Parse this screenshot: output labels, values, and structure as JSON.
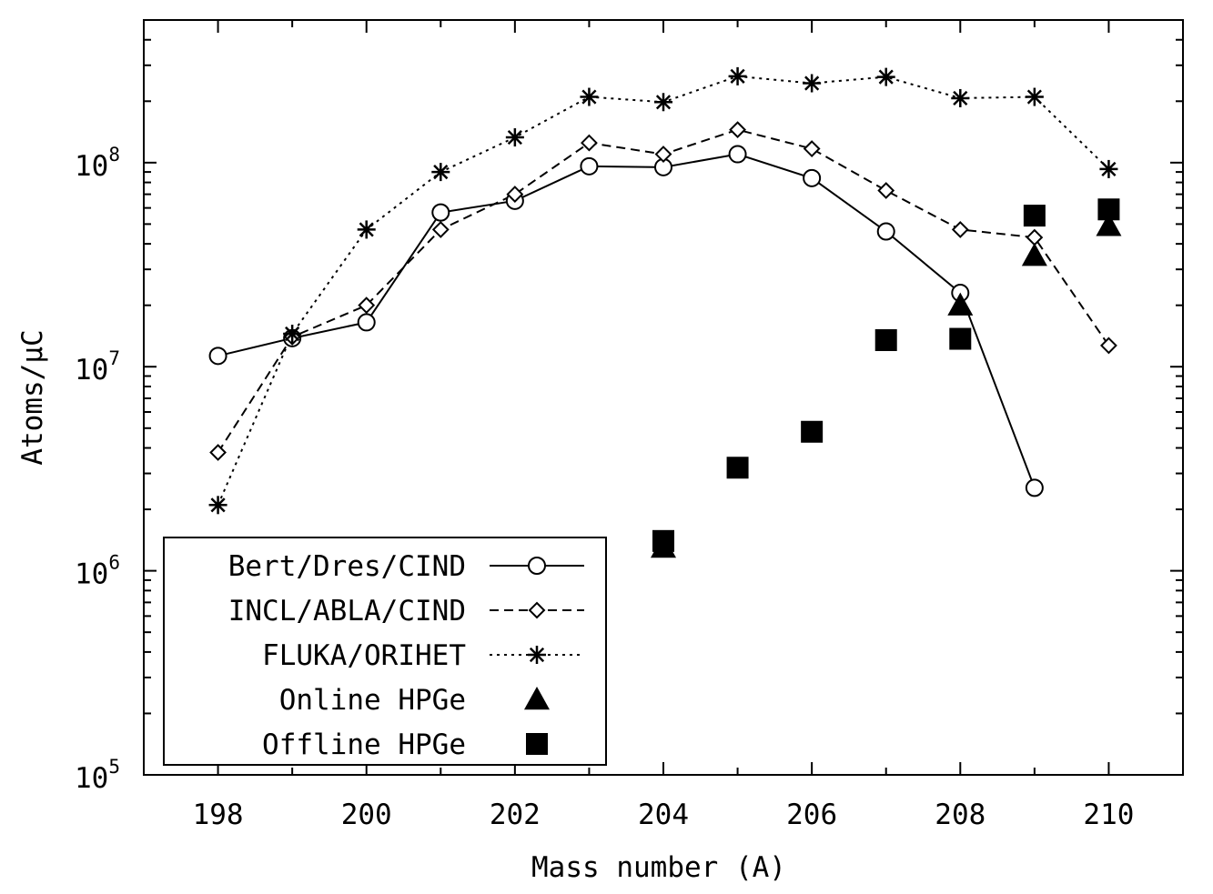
{
  "chart_data": {
    "type": "scatter",
    "title": "",
    "xlabel": "Mass number (A)",
    "ylabel": "Atoms/μC",
    "xlim": [
      197,
      211
    ],
    "ylim": [
      100000,
      500000000
    ],
    "yscale": "log",
    "grid": false,
    "legend_position": "bottom-left",
    "x_ticks": [
      198,
      200,
      202,
      204,
      206,
      208,
      210
    ],
    "y_ticks": [
      {
        "value": 100000,
        "base": "10",
        "exp": "5"
      },
      {
        "value": 1000000,
        "base": "10",
        "exp": "6"
      },
      {
        "value": 10000000,
        "base": "10",
        "exp": "7"
      },
      {
        "value": 100000000,
        "base": "10",
        "exp": "8"
      }
    ],
    "series": [
      {
        "name": "Bert/Dres/CIND",
        "style": "solid",
        "marker": "circle-open",
        "x": [
          198,
          199,
          200,
          201,
          202,
          203,
          204,
          205,
          206,
          207,
          208,
          209
        ],
        "y": [
          11300000,
          13800000,
          16500000,
          57000000,
          65000000,
          96000000,
          95000000,
          110000000,
          84000000,
          46000000,
          23000000,
          2550000
        ]
      },
      {
        "name": "INCL/ABLA/CIND",
        "style": "dashed",
        "marker": "diamond-open",
        "x": [
          198,
          199,
          200,
          201,
          202,
          203,
          204,
          205,
          206,
          207,
          208,
          209,
          210
        ],
        "y": [
          3800000,
          14000000,
          20000000,
          47000000,
          70000000,
          125000000,
          110000000,
          145000000,
          117000000,
          73000000,
          47000000,
          43000000,
          12700000
        ]
      },
      {
        "name": "FLUKA/ORIHET",
        "style": "dotted",
        "marker": "star",
        "x": [
          198,
          199,
          200,
          201,
          202,
          203,
          204,
          205,
          206,
          207,
          208,
          209,
          210
        ],
        "y": [
          2100000,
          14500000,
          47000000,
          90000000,
          133000000,
          210000000,
          198000000,
          265000000,
          245000000,
          263000000,
          207000000,
          210000000,
          93000000
        ]
      },
      {
        "name": "Online HPGe",
        "style": "none",
        "marker": "triangle-filled",
        "x": [
          204,
          208,
          209,
          210
        ],
        "y": [
          1300000,
          20000000,
          35000000,
          49000000
        ]
      },
      {
        "name": "Offline HPGe",
        "style": "none",
        "marker": "square-filled",
        "x": [
          204,
          205,
          206,
          207,
          208,
          209,
          210
        ],
        "y": [
          1400000,
          3200000,
          4800000,
          13500000,
          13700000,
          55000000,
          59000000
        ]
      }
    ]
  }
}
